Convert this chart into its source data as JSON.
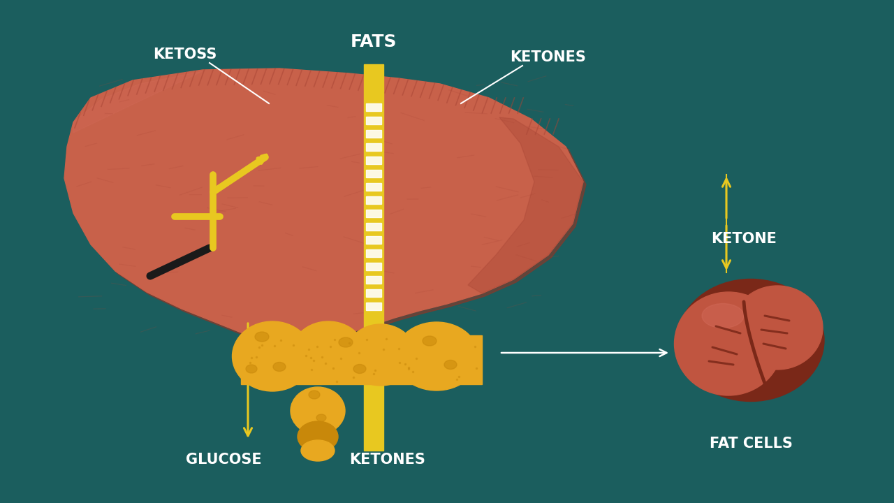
{
  "background_color": "#1b5e5e",
  "liver_color": "#c8614a",
  "liver_dark": "#a84535",
  "liver_shadow": "#903525",
  "pancreas_color": "#e8a820",
  "pancreas_dark": "#c8880a",
  "fat_cell_color": "#c05540",
  "fat_cell_dark": "#7a2818",
  "arrow_color": "#e8c820",
  "text_color": "#ffffff",
  "fats_bar_color": "#e8c820",
  "label_ketoss": "KETOSS",
  "label_fats": "FATS",
  "label_ketones_top": "KETONES",
  "label_ketone": "KETONE",
  "label_glucose": "GLUCOSE",
  "label_ketones_bottom": "KETONES",
  "label_fat_cells": "FAT CELLS",
  "font_size": 15
}
